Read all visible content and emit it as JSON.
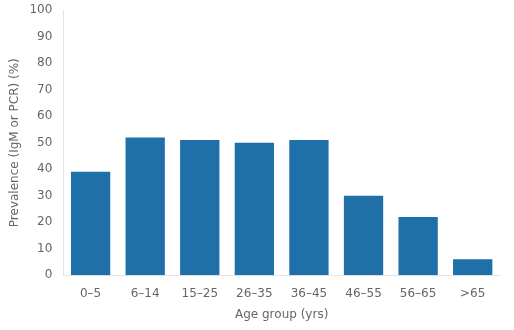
{
  "chart_data": {
    "type": "bar",
    "xlabel": "Age group (yrs)",
    "ylabel": "Prevalence (IgM or PCR) (%)",
    "categories": [
      "0–5",
      "6–14",
      "15–25",
      "26–35",
      "36–45",
      "46–55",
      "56–65",
      ">65"
    ],
    "values": [
      39,
      52,
      51,
      50,
      51,
      30,
      22,
      6
    ],
    "color": "#1f6fa8",
    "ylim": [
      0,
      100
    ],
    "yticks": [
      0,
      10,
      20,
      30,
      40,
      50,
      60,
      70,
      80,
      90,
      100
    ],
    "grid": false
  }
}
